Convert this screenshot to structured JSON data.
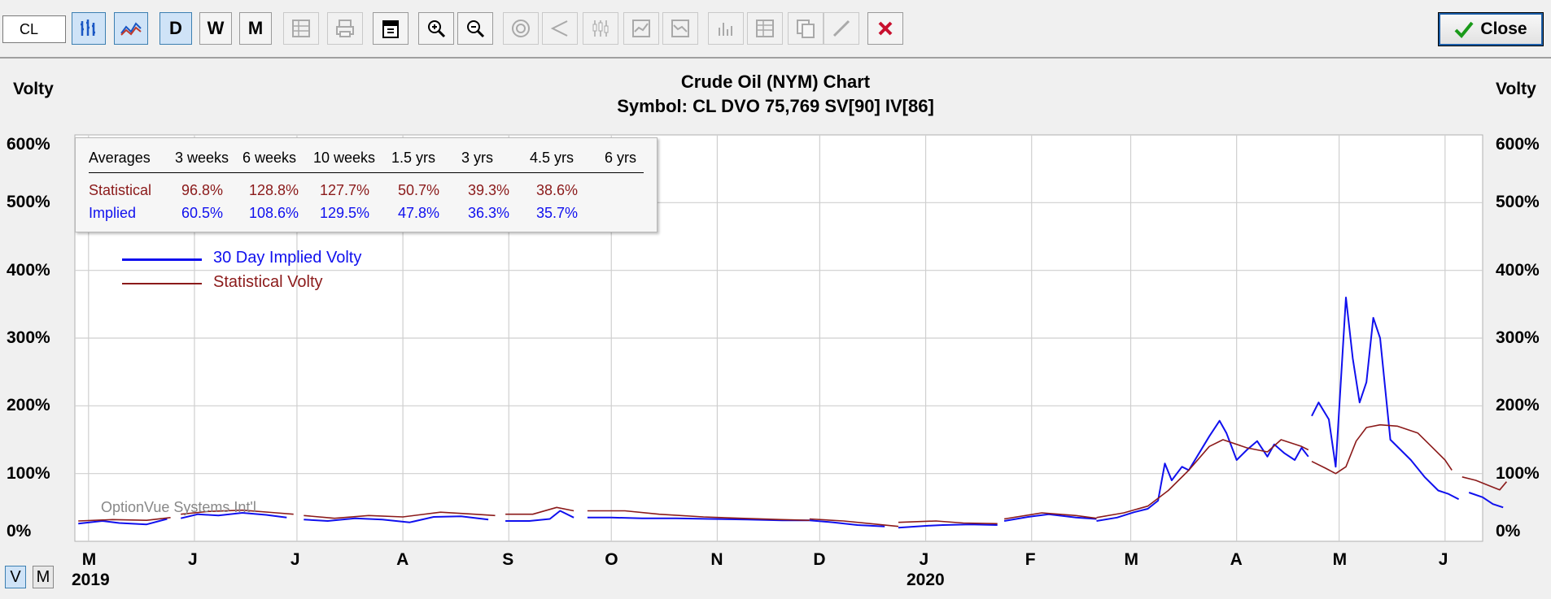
{
  "toolbar": {
    "symbol_value": "CL",
    "day_label": "D",
    "week_label": "W",
    "month_label": "M",
    "close_label": "Close"
  },
  "chart_data": {
    "type": "line",
    "title": "Crude Oil (NYM) Chart",
    "subtitle": "Symbol: CL  DVO 75,769  SV[90]  IV[86]",
    "ylabel_left": "Volty",
    "ylabel_right": "Volty",
    "y_ticks": [
      "600%",
      "500%",
      "400%",
      "300%",
      "200%",
      "100%",
      "0%"
    ],
    "ylim": [
      0,
      600
    ],
    "x_ticks": [
      "M",
      "J",
      "J",
      "A",
      "S",
      "O",
      "N",
      "D",
      "J",
      "F",
      "M",
      "A",
      "M",
      "J"
    ],
    "year_labels": [
      "2019",
      "2020"
    ],
    "x_tick_dates": [
      "2019-05-01",
      "2019-06-01",
      "2019-07-01",
      "2019-08-01",
      "2019-09-01",
      "2019-10-01",
      "2019-11-01",
      "2019-12-01",
      "2020-01-01",
      "2020-02-01",
      "2020-03-01",
      "2020-04-01",
      "2020-05-01",
      "2020-06-01"
    ],
    "xlim": [
      "2019-04-27",
      "2020-06-12"
    ],
    "grid": true,
    "legend_placement": "top-left",
    "series": [
      {
        "name": "30 Day Implied Volty",
        "color": "#1010ee",
        "points": [
          [
            "2019-04-28",
            26
          ],
          [
            "2019-05-05",
            30
          ],
          [
            "2019-05-10",
            27
          ],
          [
            "2019-05-18",
            25
          ],
          [
            "2019-05-24",
            33
          ],
          [
            "null",
            null
          ],
          [
            "2019-05-28",
            34
          ],
          [
            "2019-06-02",
            40
          ],
          [
            "2019-06-08",
            38
          ],
          [
            "2019-06-15",
            42
          ],
          [
            "2019-06-22",
            39
          ],
          [
            "2019-06-28",
            35
          ],
          [
            "null",
            null
          ],
          [
            "2019-07-03",
            32
          ],
          [
            "2019-07-10",
            30
          ],
          [
            "2019-07-18",
            34
          ],
          [
            "2019-07-26",
            32
          ],
          [
            "2019-08-03",
            28
          ],
          [
            "2019-08-10",
            36
          ],
          [
            "2019-08-18",
            37
          ],
          [
            "2019-08-26",
            32
          ],
          [
            "null",
            null
          ],
          [
            "2019-08-31",
            30
          ],
          [
            "2019-09-07",
            30
          ],
          [
            "2019-09-13",
            33
          ],
          [
            "2019-09-16",
            45
          ],
          [
            "2019-09-20",
            35
          ],
          [
            "null",
            null
          ],
          [
            "2019-09-24",
            35
          ],
          [
            "2019-10-01",
            35
          ],
          [
            "2019-10-10",
            34
          ],
          [
            "2019-10-20",
            34
          ],
          [
            "2019-10-30",
            33
          ],
          [
            "2019-11-10",
            32
          ],
          [
            "2019-11-20",
            31
          ],
          [
            "2019-11-28",
            31
          ],
          [
            "null",
            null
          ],
          [
            "2019-11-28",
            31
          ],
          [
            "2019-12-05",
            28
          ],
          [
            "2019-12-12",
            24
          ],
          [
            "2019-12-20",
            22
          ],
          [
            "null",
            null
          ],
          [
            "2019-12-24",
            20
          ],
          [
            "2020-01-02",
            23
          ],
          [
            "2020-01-06",
            24
          ],
          [
            "2020-01-14",
            25
          ],
          [
            "2020-01-22",
            24
          ],
          [
            "null",
            null
          ],
          [
            "2020-01-24",
            30
          ],
          [
            "2020-01-31",
            36
          ],
          [
            "2020-02-06",
            40
          ],
          [
            "2020-02-14",
            35
          ],
          [
            "2020-02-20",
            33
          ],
          [
            "null",
            null
          ],
          [
            "2020-02-20",
            30
          ],
          [
            "2020-02-26",
            35
          ],
          [
            "2020-03-02",
            43
          ],
          [
            "2020-03-06",
            48
          ],
          [
            "2020-03-09",
            60
          ],
          [
            "2020-03-11",
            115
          ],
          [
            "2020-03-13",
            90
          ],
          [
            "2020-03-16",
            110
          ],
          [
            "2020-03-18",
            105
          ],
          [
            "2020-03-21",
            130
          ],
          [
            "2020-03-24",
            155
          ],
          [
            "2020-03-27",
            178
          ],
          [
            "2020-03-29",
            160
          ],
          [
            "2020-04-01",
            120
          ],
          [
            "2020-04-04",
            135
          ],
          [
            "2020-04-07",
            148
          ],
          [
            "2020-04-10",
            125
          ],
          [
            "2020-04-12",
            143
          ],
          [
            "2020-04-15",
            130
          ],
          [
            "2020-04-18",
            120
          ],
          [
            "2020-04-20",
            138
          ],
          [
            "2020-04-22",
            125
          ],
          [
            "null",
            null
          ],
          [
            "2020-04-23",
            185
          ],
          [
            "2020-04-25",
            205
          ],
          [
            "2020-04-28",
            180
          ],
          [
            "2020-04-30",
            110
          ],
          [
            "2020-05-03",
            360
          ],
          [
            "2020-05-05",
            270
          ],
          [
            "2020-05-07",
            205
          ],
          [
            "2020-05-09",
            235
          ],
          [
            "2020-05-11",
            330
          ],
          [
            "2020-05-13",
            300
          ],
          [
            "2020-05-16",
            150
          ],
          [
            "2020-05-19",
            135
          ],
          [
            "2020-05-22",
            120
          ],
          [
            "2020-05-26",
            95
          ],
          [
            "2020-05-30",
            75
          ],
          [
            "2020-06-02",
            70
          ],
          [
            "2020-06-05",
            62
          ],
          [
            "null",
            null
          ],
          [
            "2020-06-08",
            72
          ],
          [
            "2020-06-12",
            65
          ],
          [
            "2020-06-15",
            55
          ],
          [
            "2020-06-18",
            50
          ]
        ]
      },
      {
        "name": "Statistical Volty",
        "color": "#8b1a1a",
        "points": [
          [
            "2019-04-28",
            30
          ],
          [
            "2019-05-08",
            32
          ],
          [
            "2019-05-18",
            31
          ],
          [
            "2019-05-25",
            35
          ],
          [
            "null",
            null
          ],
          [
            "2019-05-28",
            40
          ],
          [
            "2019-06-05",
            44
          ],
          [
            "2019-06-15",
            46
          ],
          [
            "2019-06-25",
            42
          ],
          [
            "2019-06-30",
            40
          ],
          [
            "null",
            null
          ],
          [
            "2019-07-03",
            38
          ],
          [
            "2019-07-12",
            34
          ],
          [
            "2019-07-22",
            38
          ],
          [
            "2019-08-01",
            36
          ],
          [
            "2019-08-12",
            43
          ],
          [
            "2019-08-22",
            40
          ],
          [
            "2019-08-28",
            38
          ],
          [
            "null",
            null
          ],
          [
            "2019-08-31",
            40
          ],
          [
            "2019-09-08",
            40
          ],
          [
            "2019-09-15",
            50
          ],
          [
            "2019-09-20",
            45
          ],
          [
            "null",
            null
          ],
          [
            "2019-09-24",
            45
          ],
          [
            "2019-10-05",
            45
          ],
          [
            "2019-10-15",
            40
          ],
          [
            "2019-10-28",
            36
          ],
          [
            "2019-11-08",
            34
          ],
          [
            "2019-11-20",
            32
          ],
          [
            "2019-11-28",
            31
          ],
          [
            "null",
            null
          ],
          [
            "2019-11-28",
            33
          ],
          [
            "2019-12-08",
            30
          ],
          [
            "2019-12-18",
            25
          ],
          [
            "2019-12-24",
            22
          ],
          [
            "null",
            null
          ],
          [
            "2019-12-24",
            28
          ],
          [
            "2020-01-04",
            30
          ],
          [
            "2020-01-12",
            27
          ],
          [
            "2020-01-22",
            26
          ],
          [
            "null",
            null
          ],
          [
            "2020-01-24",
            33
          ],
          [
            "2020-02-04",
            42
          ],
          [
            "2020-02-14",
            38
          ],
          [
            "2020-02-20",
            34
          ],
          [
            "null",
            null
          ],
          [
            "2020-02-20",
            35
          ],
          [
            "2020-02-28",
            42
          ],
          [
            "2020-03-06",
            52
          ],
          [
            "2020-03-12",
            75
          ],
          [
            "2020-03-18",
            105
          ],
          [
            "2020-03-24",
            140
          ],
          [
            "2020-03-28",
            150
          ],
          [
            "2020-04-04",
            138
          ],
          [
            "2020-04-10",
            132
          ],
          [
            "2020-04-14",
            150
          ],
          [
            "2020-04-20",
            140
          ],
          [
            "2020-04-22",
            135
          ],
          [
            "null",
            null
          ],
          [
            "2020-04-23",
            118
          ],
          [
            "2020-04-27",
            108
          ],
          [
            "2020-04-30",
            100
          ],
          [
            "2020-05-03",
            110
          ],
          [
            "2020-05-06",
            148
          ],
          [
            "2020-05-09",
            168
          ],
          [
            "2020-05-13",
            172
          ],
          [
            "2020-05-18",
            170
          ],
          [
            "2020-05-24",
            160
          ],
          [
            "2020-05-28",
            140
          ],
          [
            "2020-06-01",
            120
          ],
          [
            "2020-06-03",
            105
          ],
          [
            "null",
            null
          ],
          [
            "2020-06-06",
            95
          ],
          [
            "2020-06-10",
            90
          ],
          [
            "2020-06-14",
            82
          ],
          [
            "2020-06-17",
            76
          ],
          [
            "2020-06-19",
            88
          ]
        ]
      }
    ]
  },
  "averages": {
    "headers": [
      "Averages",
      "3 weeks",
      "6 weeks",
      "10 weeks",
      "1.5 yrs",
      "3 yrs",
      "4.5 yrs",
      "6 yrs"
    ],
    "statistical": {
      "label": "Statistical",
      "values": [
        "96.8%",
        "128.8%",
        "127.7%",
        "50.7%",
        "39.3%",
        "38.6%",
        ""
      ]
    },
    "implied": {
      "label": "Implied",
      "values": [
        "60.5%",
        "108.6%",
        "129.5%",
        "47.8%",
        "36.3%",
        "35.7%",
        ""
      ]
    }
  },
  "legend": {
    "implied_label": "30 Day Implied Volty",
    "statistical_label": "Statistical Volty"
  },
  "watermark": "OptionVue Systems Int'l",
  "view_toggle": {
    "v_label": "V",
    "m_label": "M"
  },
  "colors": {
    "implied": "#1010ee",
    "statistical": "#8b1a1a",
    "grid": "#cfcfcf"
  }
}
